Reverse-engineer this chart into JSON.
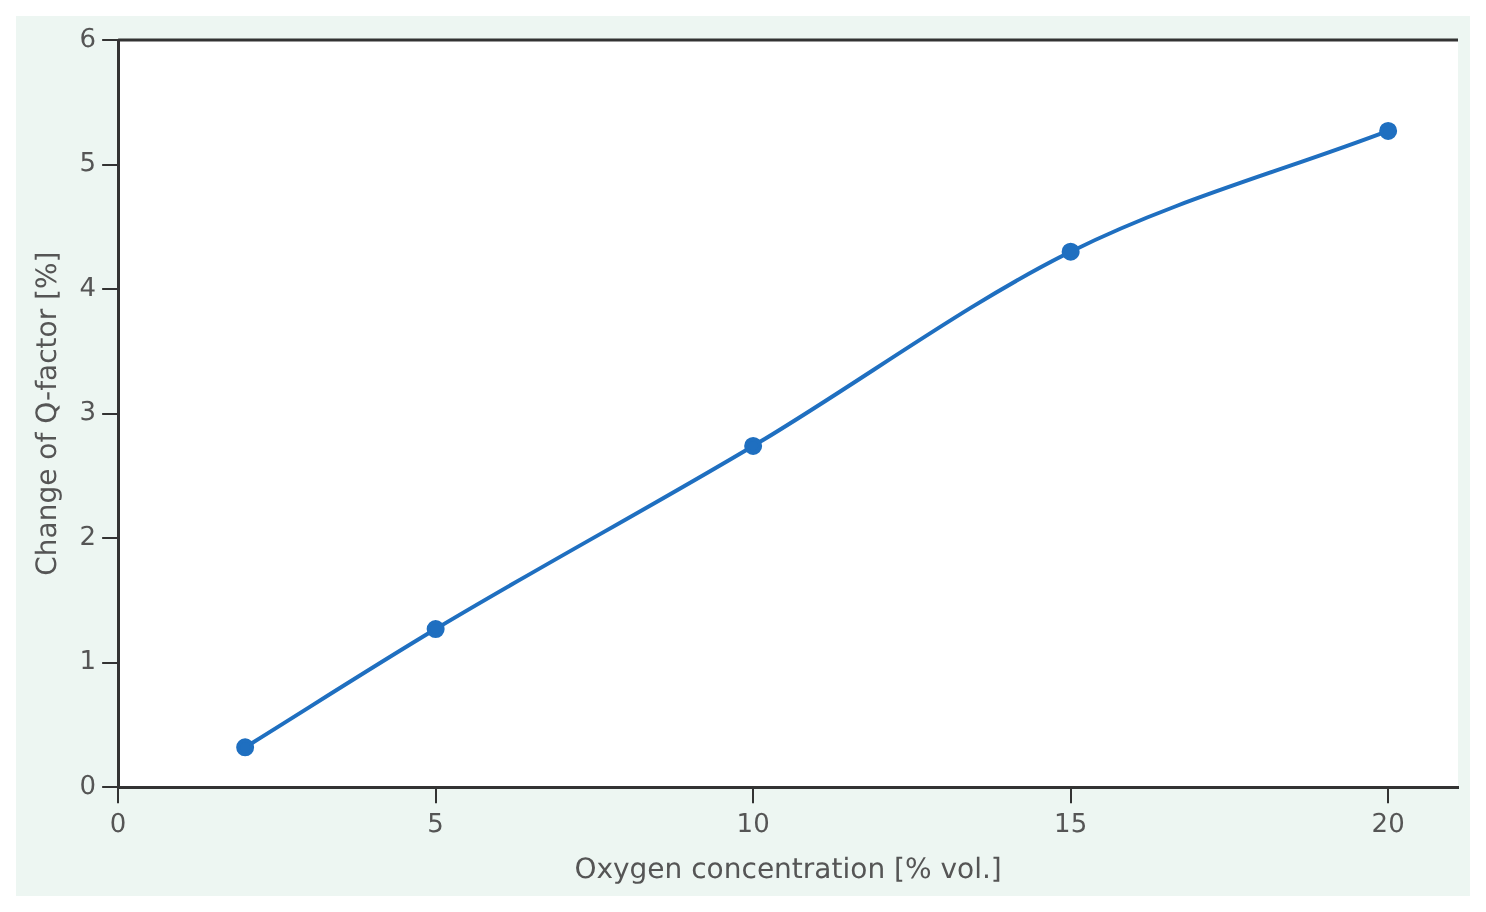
{
  "chart_data": {
    "type": "line",
    "xlabel": "Oxygen concentration [% vol.]",
    "ylabel": "Change of Q-factor [%]",
    "x": [
      2,
      5,
      10,
      15,
      20
    ],
    "series": [
      {
        "color": "#1f6fc0",
        "values": [
          0.32,
          1.27,
          2.74,
          4.3,
          5.27
        ]
      }
    ],
    "xlim": [
      0,
      21.1
    ],
    "xticks": [
      0,
      5,
      10,
      15,
      20
    ],
    "ylim": [
      0,
      6
    ],
    "yticks": [
      0,
      1,
      2,
      3,
      4,
      5,
      6
    ],
    "grid": false,
    "legend": false,
    "marker": "circle",
    "line_style": "solid"
  }
}
